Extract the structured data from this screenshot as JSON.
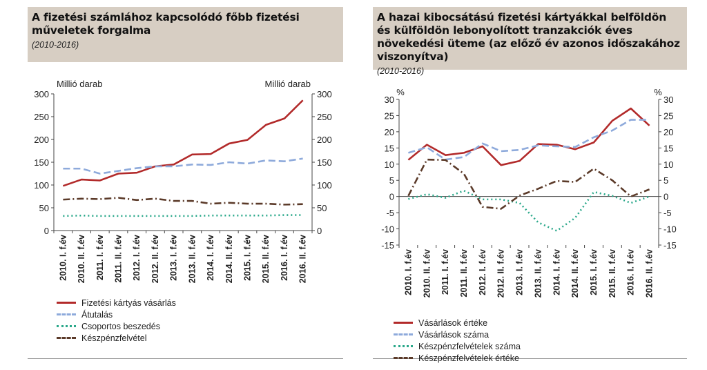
{
  "charts": [
    {
      "title": "A fizetési számlához kapcsolódó főbb fizetési műveletek forgalma",
      "subtitle": "(2010-2016)",
      "chart_data": {
        "type": "line",
        "title": "A fizetési számlához kapcsolódó főbb fizetési műveletek forgalma",
        "subtitle": "(2010-2016)",
        "ylabel_left": "Millió darab",
        "ylabel_right": "Millió darab",
        "ylim": [
          0,
          300
        ],
        "yticks": [
          0,
          50,
          100,
          150,
          200,
          250,
          300
        ],
        "categories": [
          "2010. I. f.év",
          "2010. II. f.év",
          "2011. I. f.év",
          "2011. II. f.év",
          "2012. I. f.év",
          "2012. II. f.év",
          "2013. I. f.év",
          "2013. II. f.év",
          "2014. I. f.év",
          "2014. II. f.év",
          "2015. I. f.év",
          "2015. II. f.év",
          "2016. I. f.év",
          "2016. II. f.év"
        ],
        "series": [
          {
            "name": "Fizetési kártyás vásárlás",
            "color": "#b22a2a",
            "style": "solid",
            "values": [
              98,
              112,
              110,
              125,
              127,
              141,
              145,
              167,
              168,
              191,
              199,
              232,
              246,
              286
            ]
          },
          {
            "name": "Átutalás",
            "color": "#8eaadb",
            "style": "dashed",
            "values": [
              136,
              136,
              125,
              131,
              137,
              141,
              141,
              145,
              144,
              150,
              147,
              154,
              152,
              158
            ]
          },
          {
            "name": "Csoportos beszedés",
            "color": "#2aa88a",
            "style": "dotted",
            "values": [
              32,
              33,
              32,
              32,
              32,
              32,
              32,
              32,
              33,
              33,
              33,
              33,
              34,
              34
            ]
          },
          {
            "name": "Készpénzfelvétel",
            "color": "#5b3a29",
            "style": "dashdot",
            "values": [
              68,
              70,
              69,
              72,
              67,
              70,
              65,
              65,
              59,
              61,
              59,
              59,
              57,
              58
            ]
          }
        ]
      }
    },
    {
      "title": "A hazai kibocsátású fizetési kártyákkal belföldön és külföldön lebonyolított tranzakciók éves növekedési üteme (az előző év azonos időszakához viszonyítva)",
      "subtitle": "(2010-2016)",
      "chart_data": {
        "type": "line",
        "title": "A hazai kibocsátású fizetési kártyákkal belföldön és külföldön lebonyolított tranzakciók éves növekedési üteme (az előző év azonos időszakához viszonyítva)",
        "subtitle": "(2010-2016)",
        "ylabel_left": "%",
        "ylabel_right": "%",
        "ylim": [
          -15,
          30
        ],
        "yticks": [
          -15,
          -10,
          -5,
          0,
          5,
          10,
          15,
          20,
          25,
          30
        ],
        "categories": [
          "2010. I. f.év",
          "2010. II. f.év",
          "2011. I. f.év",
          "2011. II. f.év",
          "2012. I. f.év",
          "2012. II. f.év",
          "2013. I. f.év",
          "2013. II. f.év",
          "2014. I. f.év",
          "2014. II. f.év",
          "2015. I. f.év",
          "2015. II. f.év",
          "2016. I. f.év",
          "2016. II. f.év"
        ],
        "series": [
          {
            "name": "Vásárlások értéke",
            "color": "#b22a2a",
            "style": "solid",
            "values": [
              11.3,
              16,
              12.8,
              13.5,
              15.5,
              9.7,
              11,
              16.2,
              16,
              14.6,
              16.7,
              23.4,
              27.2,
              21.9
            ]
          },
          {
            "name": "Vásárlások száma",
            "color": "#8eaadb",
            "style": "dashed",
            "values": [
              13.5,
              15.2,
              11.4,
              12.2,
              16.4,
              14,
              14.4,
              15.8,
              15.5,
              15.3,
              18.3,
              20.4,
              23.7,
              23.7
            ]
          },
          {
            "name": "Készpénzfelvételek száma",
            "color": "#2aa88a",
            "style": "dotted",
            "values": [
              -0.8,
              0.7,
              -0.4,
              1.8,
              -0.9,
              -0.9,
              -2,
              -8,
              -10.6,
              -6.6,
              1.4,
              0.2,
              -2,
              0
            ]
          },
          {
            "name": "Készpénzfelvételek értéke",
            "color": "#5b3a29",
            "style": "dashdot",
            "values": [
              0.2,
              11.4,
              11.3,
              7,
              -3.2,
              -3.8,
              0.3,
              2.4,
              4.8,
              4.5,
              8.6,
              5,
              0,
              2.2
            ]
          }
        ]
      }
    }
  ]
}
